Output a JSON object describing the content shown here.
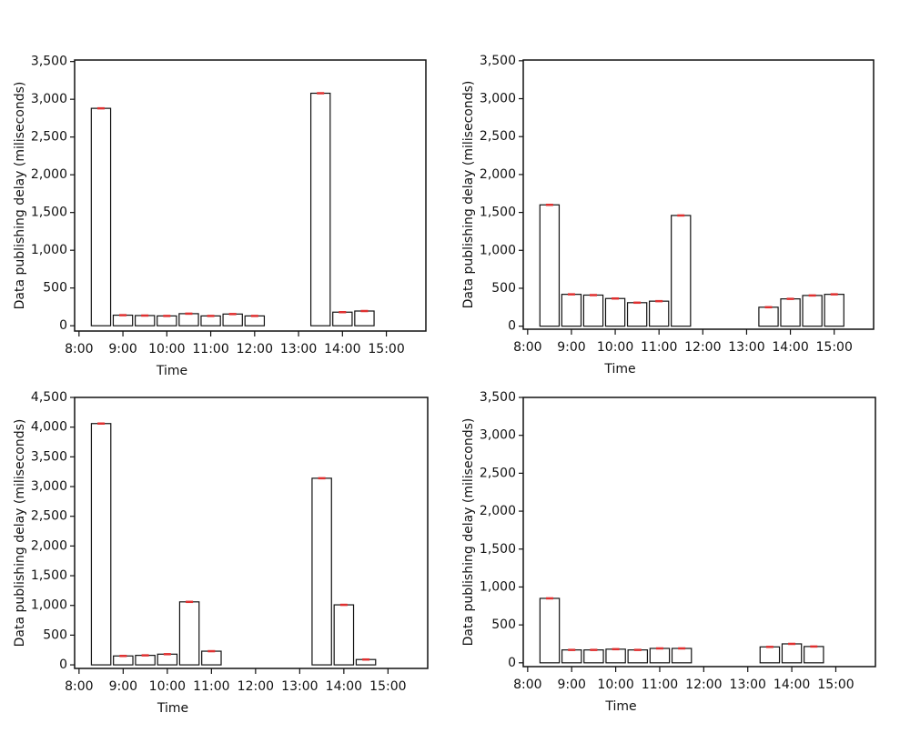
{
  "chart_data": [
    {
      "type": "bar",
      "xlabel": "Time",
      "ylabel": "Data publishing delay (miliseconds)",
      "x": [
        8.5,
        9,
        9.5,
        10,
        10.5,
        11,
        11.5,
        12,
        13.5,
        14,
        14.5
      ],
      "values": [
        2880,
        140,
        135,
        130,
        160,
        130,
        155,
        130,
        3080,
        180,
        195
      ],
      "color": "#ffffff",
      "error_color": "#e03030",
      "xlim": [
        7.9,
        15.9
      ],
      "xticks": [
        {
          "value": 8,
          "label": "8:00"
        },
        {
          "value": 9,
          "label": "9:00"
        },
        {
          "value": 10,
          "label": "10:00"
        },
        {
          "value": 11,
          "label": "11:00"
        },
        {
          "value": 12,
          "label": "12:00"
        },
        {
          "value": 13,
          "label": "13:00"
        },
        {
          "value": 14,
          "label": "14:00"
        },
        {
          "value": 15,
          "label": "15:00"
        }
      ],
      "ylim": [
        -70,
        3520
      ],
      "yticks": [
        0,
        500,
        {
          "value": 1000,
          "label": "1,000"
        },
        {
          "value": 1500,
          "label": "1,500"
        },
        {
          "value": 2000,
          "label": "2,000"
        },
        {
          "value": 2500,
          "label": "2,500"
        },
        {
          "value": 3000,
          "label": "3,000"
        },
        {
          "value": 3500,
          "label": "3,500"
        }
      ]
    },
    {
      "type": "bar",
      "xlabel": "Time",
      "ylabel": "Data publishing delay (miliseconds)",
      "x": [
        8.5,
        9,
        9.5,
        10,
        10.5,
        11,
        11.5,
        13.5,
        14,
        14.5,
        15
      ],
      "values": [
        1600,
        420,
        410,
        365,
        310,
        330,
        1460,
        250,
        360,
        405,
        420
      ],
      "color": "#ffffff",
      "error_color": "#e03030",
      "xlim": [
        7.9,
        15.9
      ],
      "xticks": [
        {
          "value": 8,
          "label": "8:00"
        },
        {
          "value": 9,
          "label": "9:00"
        },
        {
          "value": 10,
          "label": "10:00"
        },
        {
          "value": 11,
          "label": "11:00"
        },
        {
          "value": 12,
          "label": "12:00"
        },
        {
          "value": 13,
          "label": "13:00"
        },
        {
          "value": 14,
          "label": "14:00"
        },
        {
          "value": 15,
          "label": "15:00"
        }
      ],
      "ylim": [
        -40,
        3510
      ],
      "yticks": [
        0,
        500,
        {
          "value": 1000,
          "label": "1,000"
        },
        {
          "value": 1500,
          "label": "1,500"
        },
        {
          "value": 2000,
          "label": "2,000"
        },
        {
          "value": 2500,
          "label": "2,500"
        },
        {
          "value": 3000,
          "label": "3,000"
        },
        {
          "value": 3500,
          "label": "3,500"
        }
      ]
    },
    {
      "type": "bar",
      "xlabel": "Time",
      "ylabel": "Data publishing delay (miliseconds)",
      "x": [
        8.5,
        9,
        9.5,
        10,
        10.5,
        11,
        13.5,
        14,
        14.5
      ],
      "values": [
        4060,
        150,
        160,
        180,
        1060,
        230,
        3140,
        1010,
        90
      ],
      "color": "#ffffff",
      "error_color": "#e03030",
      "xlim": [
        7.9,
        15.9
      ],
      "xticks": [
        {
          "value": 8,
          "label": "8:00"
        },
        {
          "value": 9,
          "label": "9:00"
        },
        {
          "value": 10,
          "label": "10:00"
        },
        {
          "value": 11,
          "label": "11:00"
        },
        {
          "value": 12,
          "label": "12:00"
        },
        {
          "value": 13,
          "label": "13:00"
        },
        {
          "value": 14,
          "label": "14:00"
        },
        {
          "value": 15,
          "label": "15:00"
        }
      ],
      "ylim": [
        -60,
        4500
      ],
      "yticks": [
        0,
        500,
        {
          "value": 1000,
          "label": "1,000"
        },
        {
          "value": 1500,
          "label": "1,500"
        },
        {
          "value": 2000,
          "label": "2,000"
        },
        {
          "value": 2500,
          "label": "2,500"
        },
        {
          "value": 3000,
          "label": "3,000"
        },
        {
          "value": 3500,
          "label": "3,500"
        },
        {
          "value": 4000,
          "label": "4,000"
        },
        {
          "value": 4500,
          "label": "4,500"
        }
      ]
    },
    {
      "type": "bar",
      "xlabel": "Time",
      "ylabel": "Data publishing delay (miliseconds)",
      "x": [
        8.5,
        9,
        9.5,
        10,
        10.5,
        11,
        11.5,
        13.5,
        14,
        14.5
      ],
      "values": [
        850,
        170,
        170,
        180,
        170,
        190,
        190,
        210,
        250,
        215
      ],
      "color": "#ffffff",
      "error_color": "#e03030",
      "xlim": [
        7.9,
        15.9
      ],
      "xticks": [
        {
          "value": 8,
          "label": "8:00"
        },
        {
          "value": 9,
          "label": "9:00"
        },
        {
          "value": 10,
          "label": "10:00"
        },
        {
          "value": 11,
          "label": "11:00"
        },
        {
          "value": 12,
          "label": "12:00"
        },
        {
          "value": 13,
          "label": "13:00"
        },
        {
          "value": 14,
          "label": "14:00"
        },
        {
          "value": 15,
          "label": "15:00"
        }
      ],
      "ylim": [
        -50,
        3500
      ],
      "yticks": [
        0,
        500,
        {
          "value": 1000,
          "label": "1,000"
        },
        {
          "value": 1500,
          "label": "1,500"
        },
        {
          "value": 2000,
          "label": "2,000"
        },
        {
          "value": 2500,
          "label": "2,500"
        },
        {
          "value": 3000,
          "label": "3,000"
        },
        {
          "value": 3500,
          "label": "3,500"
        }
      ]
    }
  ]
}
